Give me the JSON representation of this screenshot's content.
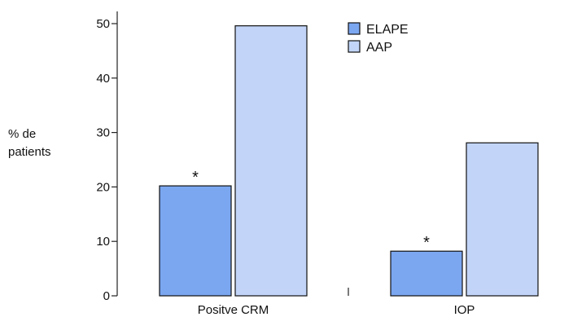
{
  "chart_data": {
    "type": "bar",
    "categories": [
      "Positve CRM",
      "IOP"
    ],
    "series": [
      {
        "name": "ELAPE",
        "values": [
          20.2,
          8.2
        ],
        "color": "#7ba7f0"
      },
      {
        "name": "AAP",
        "values": [
          49.6,
          28.1
        ],
        "color": "#c2d5f8"
      }
    ],
    "ylabel_lines": [
      "% de",
      "patients"
    ],
    "yticks": [
      0,
      10,
      20,
      30,
      40,
      50
    ],
    "ylim": [
      0,
      52
    ],
    "annotations": [
      {
        "text": "*",
        "category": 0,
        "series": 0
      },
      {
        "text": "*",
        "category": 1,
        "series": 0
      }
    ],
    "legend_position": "top-right",
    "grid": false
  }
}
